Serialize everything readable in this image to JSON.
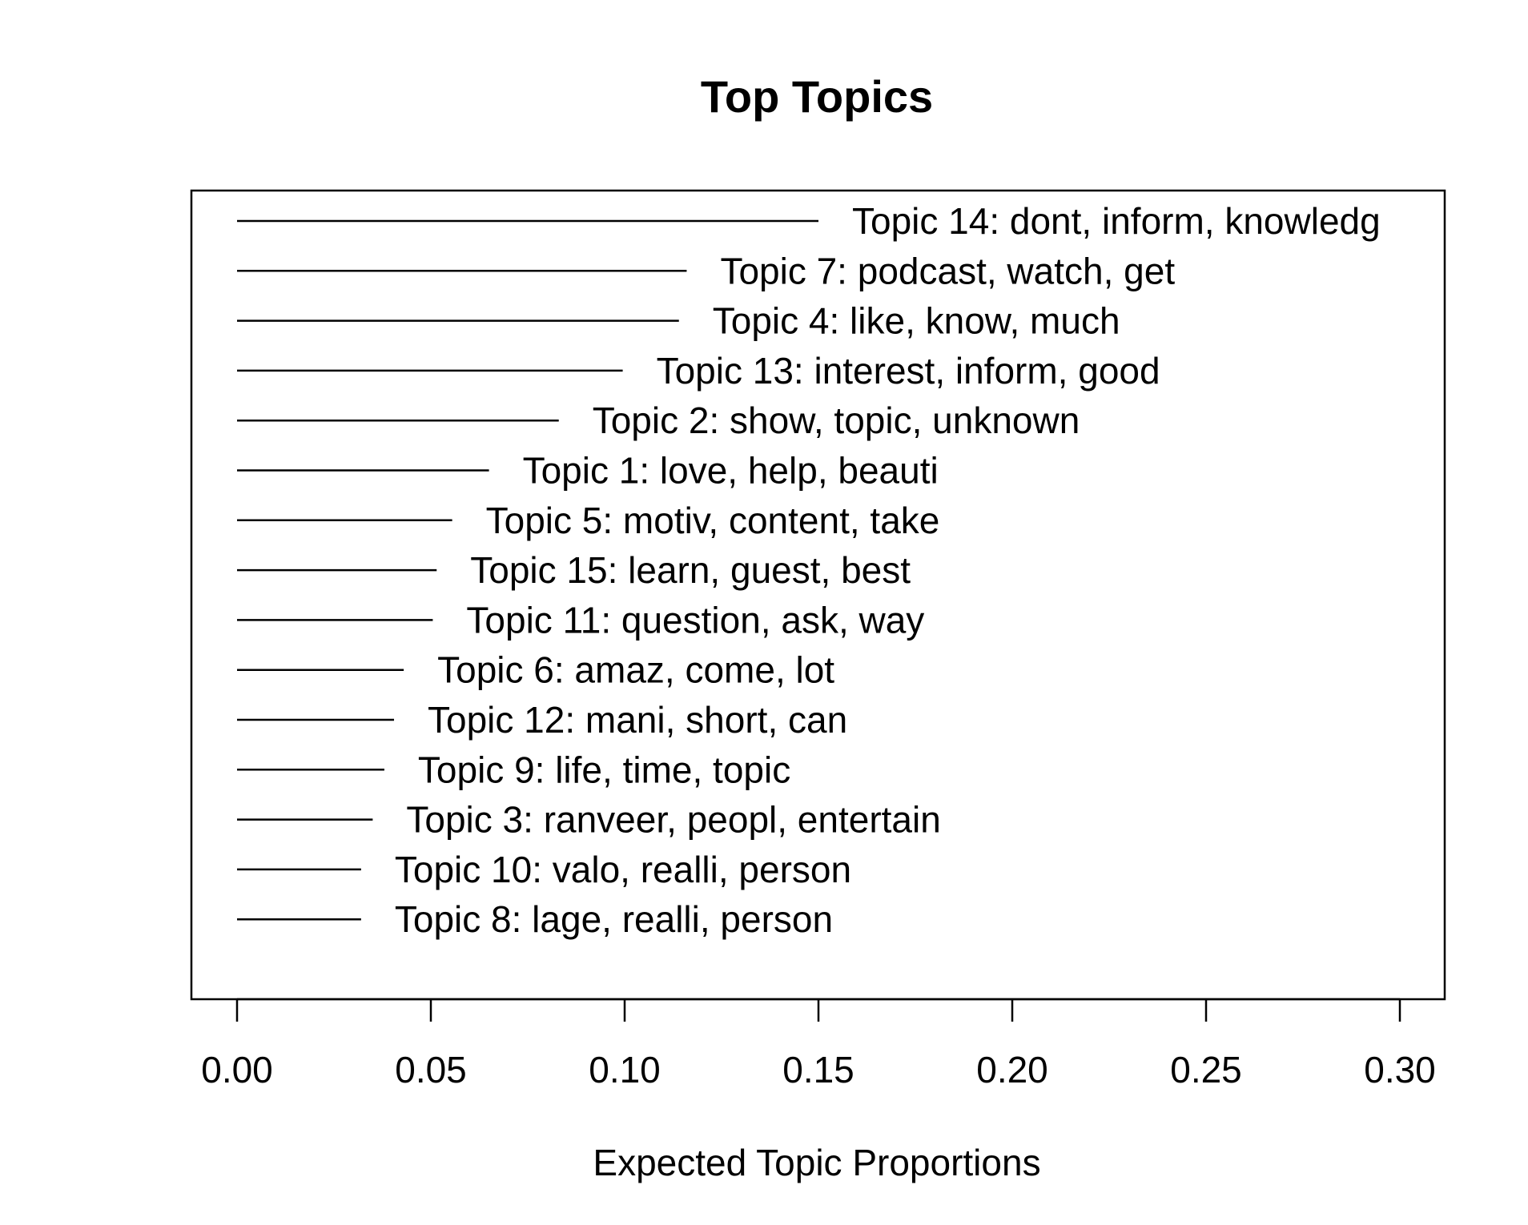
{
  "chart_data": {
    "type": "bar",
    "orientation": "horizontal",
    "title": "Top Topics",
    "xlabel": "Expected Topic Proportions",
    "ylabel": "",
    "xlim": [
      0,
      0.3
    ],
    "xticks": [
      "0.00",
      "0.05",
      "0.10",
      "0.15",
      "0.20",
      "0.25",
      "0.30"
    ],
    "grid": false,
    "topics": [
      {
        "label": "Topic 14: dont, inform, knowledg",
        "value": 0.15
      },
      {
        "label": "Topic 7: podcast, watch, get",
        "value": 0.116
      },
      {
        "label": "Topic 4: like, know, much",
        "value": 0.114
      },
      {
        "label": "Topic 13: interest, inform, good",
        "value": 0.0995
      },
      {
        "label": "Topic 2: show, topic, unknown",
        "value": 0.083
      },
      {
        "label": "Topic 1: love, help, beauti",
        "value": 0.065
      },
      {
        "label": "Topic 5: motiv, content, take",
        "value": 0.0555
      },
      {
        "label": "Topic 15: learn, guest, best",
        "value": 0.0515
      },
      {
        "label": "Topic 11: question, ask, way",
        "value": 0.0505
      },
      {
        "label": "Topic 6: amaz, come, lot",
        "value": 0.043
      },
      {
        "label": "Topic 12: mani, short, can",
        "value": 0.0405
      },
      {
        "label": "Topic 9: life, time, topic",
        "value": 0.038
      },
      {
        "label": "Topic 3: ranveer, peopl, entertain",
        "value": 0.035
      },
      {
        "label": "Topic 10: valo, realli, person",
        "value": 0.032
      },
      {
        "label": "Topic 8: lage, realli, person",
        "value": 0.032
      }
    ]
  }
}
